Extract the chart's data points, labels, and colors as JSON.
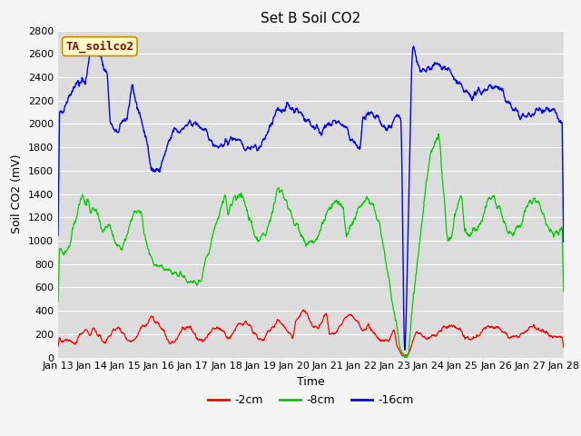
{
  "title": "Set B Soil CO2",
  "ylabel": "Soil CO2 (mV)",
  "xlabel": "Time",
  "tag_label": "TA_soilco2",
  "ylim": [
    0,
    2800
  ],
  "xtick_labels": [
    "Jan 13",
    "Jan 14",
    "Jan 15",
    "Jan 16",
    "Jan 17",
    "Jan 18",
    "Jan 19",
    "Jan 20",
    "Jan 21",
    "Jan 22",
    "Jan 23",
    "Jan 24",
    "Jan 25",
    "Jan 26",
    "Jan 27",
    "Jan 28"
  ],
  "legend_entries": [
    "-2cm",
    "-8cm",
    "-16cm"
  ],
  "legend_colors": [
    "#ff0000",
    "#00cc00",
    "#0000ff"
  ],
  "line_colors": [
    "#ff0000",
    "#00cc00",
    "#0000ff"
  ],
  "bg_color": "#e8e8e8",
  "plot_bg": "#dcdcdc",
  "title_fontsize": 11,
  "axis_fontsize": 9,
  "tick_fontsize": 8
}
